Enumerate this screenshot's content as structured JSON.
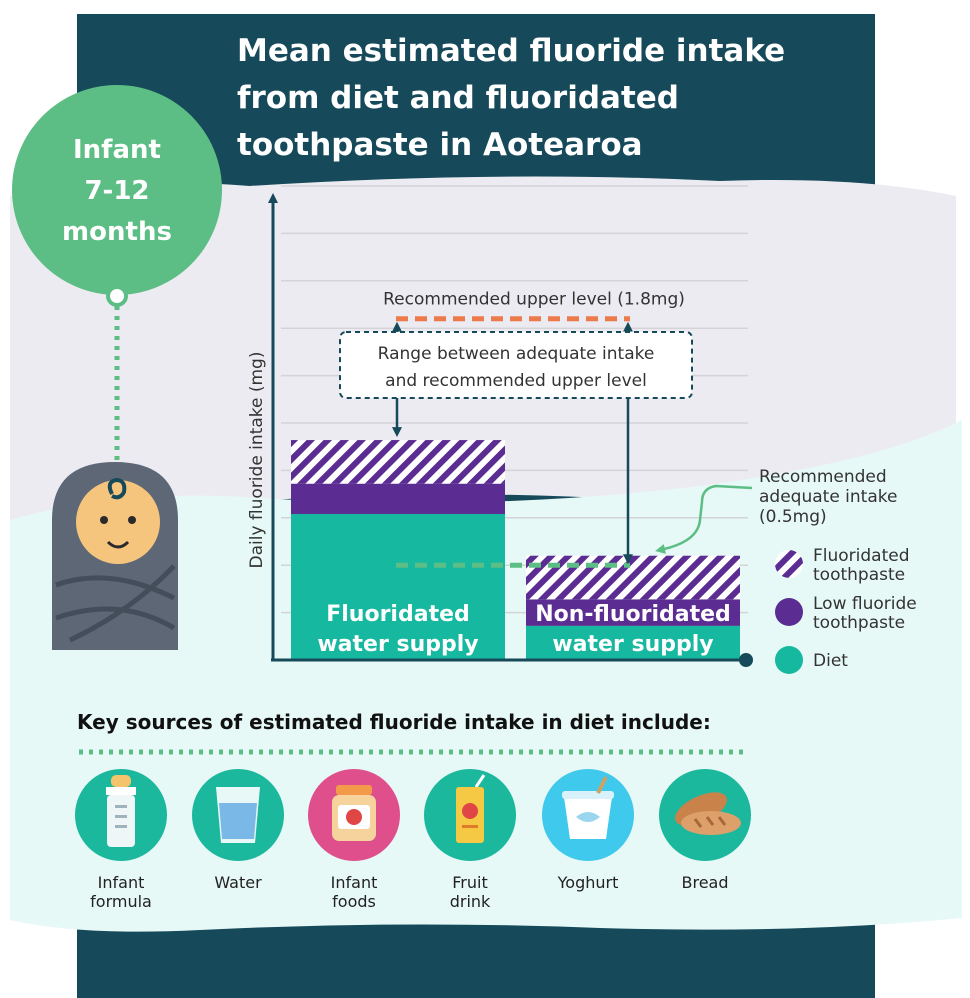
{
  "title_lines": [
    "Mean estimated fluoride intake",
    "from diet and fluoridated",
    "toothpaste in Aotearoa"
  ],
  "age_badge": [
    "Infant",
    "7-12",
    "months"
  ],
  "colors": {
    "dark_teal": "#164a5a",
    "toothpaste_stripe": "#5b2c91",
    "low_fluoride": "#5b2c91",
    "diet": "#16b8a0",
    "badge": "#5cbe84",
    "upper_level_line": "#ec7a4a",
    "adequate_line": "#5cbe84",
    "mint_background": "#e6f9f6",
    "lavender_background": "#ecebf2"
  },
  "chart_data": {
    "type": "bar",
    "stacked": true,
    "ylabel": "Daily fluoride intake (mg)",
    "ylim": [
      0,
      2.5
    ],
    "y_tick_labels": false,
    "categories": [
      [
        "Fluoridated",
        "water supply"
      ],
      [
        "Non-fluoridated",
        "water supply"
      ]
    ],
    "series": [
      {
        "name": "Diet",
        "values": [
          0.77,
          0.18
        ],
        "color": "#16b8a0"
      },
      {
        "name": "Low fluoride toothpaste",
        "values": [
          0.16,
          0.14
        ],
        "color": "#5b2c91"
      },
      {
        "name": "Fluoridated toothpaste",
        "values": [
          0.23,
          0.23
        ],
        "pattern": "stripes"
      }
    ],
    "legend_position": "right",
    "legend": [
      {
        "label": [
          "Fluoridated",
          "toothpaste"
        ],
        "pattern": "stripes"
      },
      {
        "label": [
          "Low fluoride",
          "toothpaste"
        ],
        "color": "#5b2c91"
      },
      {
        "label": [
          "Diet"
        ],
        "color": "#16b8a0"
      }
    ],
    "reference_lines": [
      {
        "label": "Recommended upper level (1.8mg)",
        "value": 1.8,
        "color": "#ec7a4a"
      },
      {
        "label": [
          "Recommended",
          "adequate intake",
          "(0.5mg)"
        ],
        "value": 0.5,
        "color": "#5cbe84"
      }
    ],
    "range_annotation": [
      "Range between adequate intake",
      "and recommended upper level"
    ],
    "grid": true
  },
  "sources": {
    "heading": "Key sources of estimated fluoride intake in diet include:",
    "items": [
      {
        "label": [
          "Infant",
          "formula"
        ],
        "icon": "baby-bottle-icon",
        "color": "#1bb89e"
      },
      {
        "label": [
          "Water"
        ],
        "icon": "water-glass-icon",
        "color": "#1bb89e"
      },
      {
        "label": [
          "Infant",
          "foods"
        ],
        "icon": "jar-icon",
        "color": "#de4f8c"
      },
      {
        "label": [
          "Fruit",
          "drink"
        ],
        "icon": "juice-box-icon",
        "color": "#1bb89e"
      },
      {
        "label": [
          "Yoghurt"
        ],
        "icon": "yoghurt-icon",
        "color": "#3fc9ec"
      },
      {
        "label": [
          "Bread"
        ],
        "icon": "bread-icon",
        "color": "#1bb89e"
      }
    ]
  }
}
